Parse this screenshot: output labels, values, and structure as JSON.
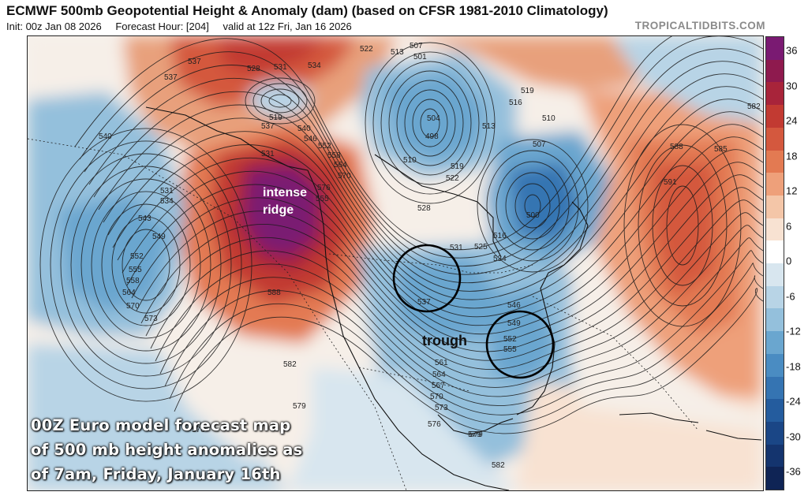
{
  "header": {
    "title": "ECMWF 500mb Geopotential Height & Anomaly (dam) (based on CFSR 1981-2010 Climatology)",
    "init": "Init: 00z Jan 08 2026",
    "forecast_hour": "Forecast Hour: [204]",
    "valid": "valid at 12z Fri, Jan 16 2026",
    "brand": "TROPICALTIDBITS.COM"
  },
  "annotations": {
    "ridge_line1": "intense",
    "ridge_line2": "ridge",
    "trough": "trough"
  },
  "caption": {
    "line1": "00Z Euro model forecast map",
    "line2": "of 500 mb height anomalies as",
    "line3": "of 7am, Friday, January 16th"
  },
  "colorbar": {
    "ticks": [
      "36",
      "30",
      "24",
      "18",
      "12",
      "6",
      "0",
      "-6",
      "-12",
      "-18",
      "-24",
      "-30",
      "-36"
    ],
    "colors": [
      "#7a1a72",
      "#8e1a4e",
      "#a8243a",
      "#c23a32",
      "#d4583e",
      "#e37a52",
      "#eea07a",
      "#f4c6a8",
      "#f8e2d2",
      "#ffffff",
      "#d8e6ef",
      "#b8d4e6",
      "#94c0dc",
      "#6aa6cf",
      "#4a8cc2",
      "#3574b2",
      "#245c9e",
      "#1a4686",
      "#14346e",
      "#0f2455"
    ]
  },
  "contour_labels": [
    {
      "text": "537",
      "group": "nw"
    },
    {
      "text": "537",
      "group": "nw"
    },
    {
      "text": "528",
      "group": "nw"
    },
    {
      "text": "531",
      "group": "nw"
    },
    {
      "text": "534",
      "group": "nw"
    },
    {
      "text": "519",
      "group": "nw"
    },
    {
      "text": "522",
      "group": "nw"
    },
    {
      "text": "513",
      "group": "n"
    },
    {
      "text": "507",
      "group": "n"
    },
    {
      "text": "501",
      "group": "n"
    },
    {
      "text": "516",
      "group": "n"
    },
    {
      "text": "519",
      "group": "n"
    },
    {
      "text": "510",
      "group": "n"
    },
    {
      "text": "513",
      "group": "n"
    },
    {
      "text": "504",
      "group": "n"
    },
    {
      "text": "498",
      "group": "n"
    },
    {
      "text": "507",
      "group": "n"
    },
    {
      "text": "510",
      "group": "n"
    },
    {
      "text": "519",
      "group": "n"
    },
    {
      "text": "522",
      "group": "n"
    },
    {
      "text": "528",
      "group": "n"
    },
    {
      "text": "500",
      "group": "e"
    },
    {
      "text": "516",
      "group": "e"
    },
    {
      "text": "525",
      "group": "e"
    },
    {
      "text": "531",
      "group": "e"
    },
    {
      "text": "534",
      "group": "e"
    },
    {
      "text": "582",
      "group": "e"
    },
    {
      "text": "588",
      "group": "e"
    },
    {
      "text": "585",
      "group": "e"
    },
    {
      "text": "591",
      "group": "e"
    },
    {
      "text": "540",
      "group": "w"
    },
    {
      "text": "531",
      "group": "w"
    },
    {
      "text": "534",
      "group": "w"
    },
    {
      "text": "543",
      "group": "w"
    },
    {
      "text": "549",
      "group": "w"
    },
    {
      "text": "552",
      "group": "w"
    },
    {
      "text": "555",
      "group": "w"
    },
    {
      "text": "558",
      "group": "w"
    },
    {
      "text": "564",
      "group": "w"
    },
    {
      "text": "570",
      "group": "w"
    },
    {
      "text": "573",
      "group": "w"
    },
    {
      "text": "531",
      "group": "r"
    },
    {
      "text": "537",
      "group": "r"
    },
    {
      "text": "540",
      "group": "r"
    },
    {
      "text": "546",
      "group": "r"
    },
    {
      "text": "552",
      "group": "r"
    },
    {
      "text": "558",
      "group": "r"
    },
    {
      "text": "564",
      "group": "r"
    },
    {
      "text": "570",
      "group": "r"
    },
    {
      "text": "576",
      "group": "r"
    },
    {
      "text": "555",
      "group": "r"
    },
    {
      "text": "588",
      "group": "r"
    },
    {
      "text": "582",
      "group": "r"
    },
    {
      "text": "579",
      "group": "s"
    },
    {
      "text": "576",
      "group": "s"
    },
    {
      "text": "537",
      "group": "t"
    },
    {
      "text": "546",
      "group": "t"
    },
    {
      "text": "549",
      "group": "t"
    },
    {
      "text": "552",
      "group": "t"
    },
    {
      "text": "555",
      "group": "t"
    },
    {
      "text": "561",
      "group": "t"
    },
    {
      "text": "564",
      "group": "t"
    },
    {
      "text": "567",
      "group": "t"
    },
    {
      "text": "570",
      "group": "t"
    },
    {
      "text": "573",
      "group": "t"
    },
    {
      "text": "576",
      "group": "t"
    },
    {
      "text": "579",
      "group": "t"
    },
    {
      "text": "582",
      "group": "t"
    },
    {
      "text": "579",
      "group": "s"
    }
  ]
}
